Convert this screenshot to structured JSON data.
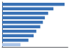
{
  "chart_data": {
    "type": "bar",
    "orientation": "horizontal",
    "categories": [
      null,
      null,
      null,
      null,
      null,
      null,
      null,
      null,
      null,
      null
    ],
    "values": [
      95,
      78,
      70,
      65,
      62,
      58,
      52,
      48,
      40,
      28
    ],
    "colors": [
      "#3a72b5",
      "#3a72b5",
      "#3a72b5",
      "#3a72b5",
      "#3a72b5",
      "#3a72b5",
      "#3a72b5",
      "#3a72b5",
      "#3a72b5",
      "#aac4e8"
    ],
    "xlim": [
      0,
      100
    ],
    "tick_labels": false,
    "grid": false
  }
}
